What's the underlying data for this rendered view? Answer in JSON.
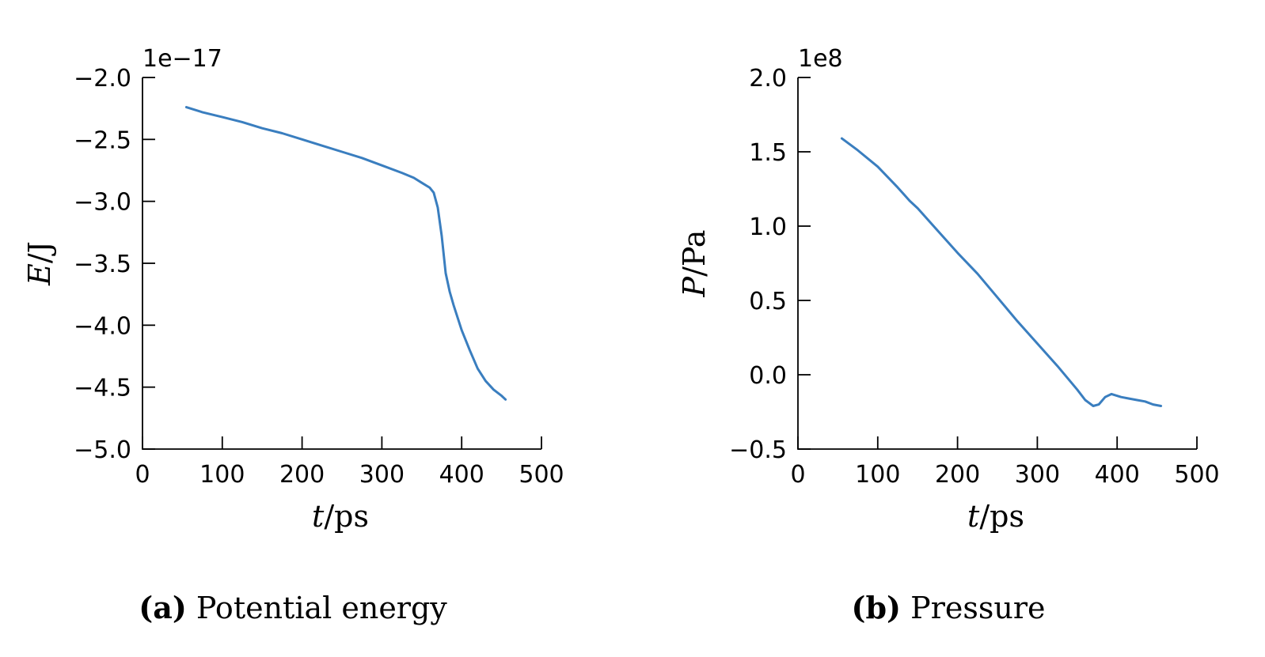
{
  "colors": {
    "line": "#3a7ebf"
  },
  "chart_data": [
    {
      "type": "line",
      "panel": "a",
      "caption_tag": "(a)",
      "caption_text": "Potential energy",
      "xlabel_var": "t",
      "xlabel_unit": "/ps",
      "ylabel_var": "E",
      "ylabel_unit": "/J",
      "offset_text": "1e−17",
      "xlim": [
        0,
        500
      ],
      "ylim": [
        -5.0,
        -2.0
      ],
      "x_ticks": [
        0,
        100,
        200,
        300,
        400,
        500
      ],
      "x_tick_labels": [
        "0",
        "100",
        "200",
        "300",
        "400",
        "500"
      ],
      "y_ticks": [
        -5.0,
        -4.5,
        -4.0,
        -3.5,
        -3.0,
        -2.5,
        -2.0
      ],
      "y_tick_labels": [
        "−5.0",
        "−4.5",
        "−4.0",
        "−3.5",
        "−3.0",
        "−2.5",
        "−2.0"
      ],
      "series": [
        {
          "x": [
            55,
            75,
            100,
            125,
            150,
            175,
            200,
            225,
            250,
            275,
            300,
            325,
            340,
            350,
            360,
            365,
            370,
            375,
            380,
            385,
            390,
            400,
            410,
            420,
            430,
            440,
            450,
            455
          ],
          "y": [
            -2.24,
            -2.28,
            -2.32,
            -2.36,
            -2.41,
            -2.45,
            -2.5,
            -2.55,
            -2.6,
            -2.65,
            -2.71,
            -2.77,
            -2.81,
            -2.85,
            -2.89,
            -2.93,
            -3.05,
            -3.28,
            -3.58,
            -3.73,
            -3.84,
            -4.04,
            -4.2,
            -4.35,
            -4.45,
            -4.52,
            -4.57,
            -4.6
          ]
        }
      ]
    },
    {
      "type": "line",
      "panel": "b",
      "caption_tag": "(b)",
      "caption_text": "Pressure",
      "xlabel_var": "t",
      "xlabel_unit": "/ps",
      "ylabel_var": "P",
      "ylabel_unit": "/Pa",
      "offset_text": "1e8",
      "xlim": [
        0,
        500
      ],
      "ylim": [
        -0.5,
        2.0
      ],
      "x_ticks": [
        0,
        100,
        200,
        300,
        400,
        500
      ],
      "x_tick_labels": [
        "0",
        "100",
        "200",
        "300",
        "400",
        "500"
      ],
      "y_ticks": [
        -0.5,
        0.0,
        0.5,
        1.0,
        1.5,
        2.0
      ],
      "y_tick_labels": [
        "−0.5",
        "0.0",
        "0.5",
        "1.0",
        "1.5",
        "2.0"
      ],
      "series": [
        {
          "x": [
            55,
            75,
            100,
            125,
            140,
            150,
            175,
            200,
            225,
            250,
            275,
            300,
            325,
            350,
            360,
            370,
            377,
            385,
            393,
            405,
            415,
            425,
            435,
            445,
            455
          ],
          "y": [
            1.59,
            1.51,
            1.4,
            1.26,
            1.17,
            1.12,
            0.97,
            0.82,
            0.68,
            0.52,
            0.36,
            0.21,
            0.06,
            -0.1,
            -0.17,
            -0.21,
            -0.2,
            -0.15,
            -0.13,
            -0.15,
            -0.16,
            -0.17,
            -0.18,
            -0.2,
            -0.21
          ]
        }
      ]
    }
  ]
}
